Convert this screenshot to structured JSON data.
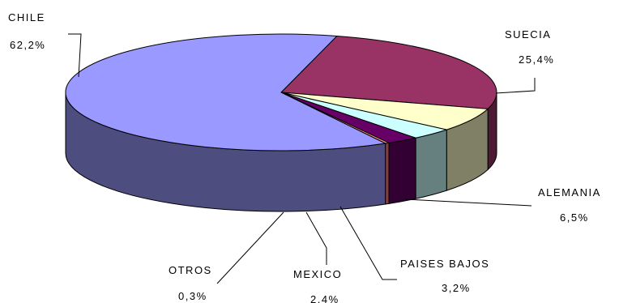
{
  "chart_data": {
    "type": "pie",
    "style": "3d-exploded-none",
    "title": "",
    "slices": [
      {
        "label": "CHILE",
        "value": 62.2,
        "value_label": "62,2%",
        "color": "#9999ff"
      },
      {
        "label": "SUECIA",
        "value": 25.4,
        "value_label": "25,4%",
        "color": "#993366"
      },
      {
        "label": "ALEMANIA",
        "value": 6.5,
        "value_label": "6,5%",
        "color": "#ffffcc"
      },
      {
        "label": "PAISES BAJOS",
        "value": 3.2,
        "value_label": "3,2%",
        "color": "#ccffff"
      },
      {
        "label": "MEXICO",
        "value": 2.4,
        "value_label": "2,4%",
        "color": "#660066"
      },
      {
        "label": "OTROS",
        "value": 0.3,
        "value_label": "0,3%",
        "color": "#ff8080"
      }
    ]
  }
}
